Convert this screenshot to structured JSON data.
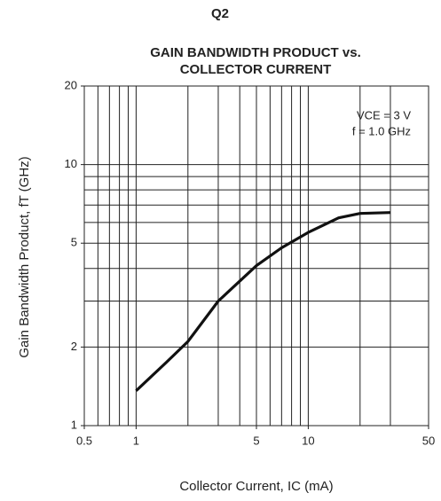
{
  "chart_data": {
    "type": "line",
    "title": [
      "Q2",
      "GAIN BANDWIDTH PRODUCT vs.",
      "COLLECTOR CURRENT"
    ],
    "xlabel": "Collector Current, IC (mA)",
    "ylabel": "Gain Bandwidth Product, fT (GHz)",
    "annotations": [
      "VCE = 3 V",
      "f = 1.0 GHz"
    ],
    "xscale": "log",
    "yscale": "log",
    "xlim": [
      0.5,
      50
    ],
    "ylim": [
      1,
      20
    ],
    "xticks": [
      0.5,
      1,
      5,
      10,
      50
    ],
    "yticks": [
      1,
      2,
      5,
      10,
      20
    ],
    "xgrid": [
      0.6,
      0.7,
      0.8,
      0.9,
      1,
      2,
      3,
      4,
      5,
      6,
      7,
      8,
      9,
      10,
      20,
      30
    ],
    "ygrid": [
      2,
      3,
      4,
      5,
      6,
      7,
      8,
      9,
      10
    ],
    "grid": true,
    "series": [
      {
        "color": "#111111",
        "x": [
          1,
          1.5,
          2,
          3,
          5,
          7,
          10,
          15,
          20,
          30
        ],
        "values": [
          1.36,
          1.75,
          2.1,
          3.0,
          4.1,
          4.8,
          5.5,
          6.25,
          6.5,
          6.55
        ]
      }
    ]
  }
}
